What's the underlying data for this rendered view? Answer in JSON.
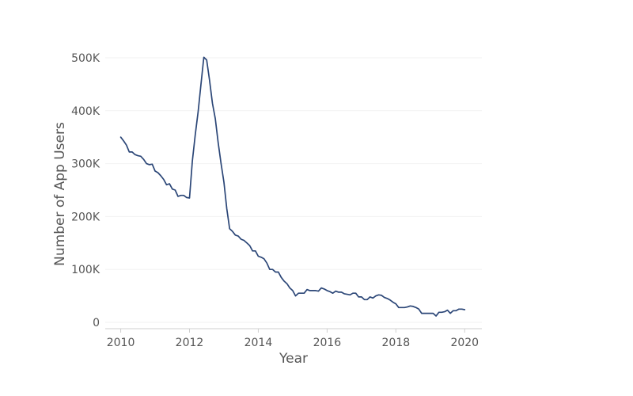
{
  "chart_data": {
    "type": "line",
    "title": "",
    "xlabel": "Year",
    "ylabel": "Number of App Users",
    "xlim": [
      2009.55,
      2020.5
    ],
    "ylim": [
      -12000,
      512000
    ],
    "grid": true,
    "x_ticks": [
      2010,
      2012,
      2014,
      2016,
      2018,
      2020
    ],
    "x_tick_labels": [
      "2010",
      "2012",
      "2014",
      "2016",
      "2018",
      "2020"
    ],
    "y_ticks": [
      0,
      100000,
      200000,
      300000,
      400000,
      500000
    ],
    "y_tick_labels": [
      "0",
      "100K",
      "200K",
      "300K",
      "400K",
      "500K"
    ],
    "series": [
      {
        "name": "App Users",
        "color": "#2b4677",
        "x": [
          2010.0,
          2010.083,
          2010.167,
          2010.25,
          2010.333,
          2010.417,
          2010.5,
          2010.583,
          2010.667,
          2010.75,
          2010.833,
          2010.917,
          2011.0,
          2011.083,
          2011.167,
          2011.25,
          2011.333,
          2011.417,
          2011.5,
          2011.583,
          2011.667,
          2011.75,
          2011.833,
          2011.917,
          2012.0,
          2012.083,
          2012.167,
          2012.25,
          2012.333,
          2012.417,
          2012.5,
          2012.583,
          2012.667,
          2012.75,
          2012.833,
          2012.917,
          2013.0,
          2013.083,
          2013.167,
          2013.25,
          2013.333,
          2013.417,
          2013.5,
          2013.583,
          2013.667,
          2013.75,
          2013.833,
          2013.917,
          2014.0,
          2014.083,
          2014.167,
          2014.25,
          2014.333,
          2014.417,
          2014.5,
          2014.583,
          2014.667,
          2014.75,
          2014.833,
          2014.917,
          2015.0,
          2015.083,
          2015.167,
          2015.25,
          2015.333,
          2015.417,
          2015.5,
          2015.583,
          2015.667,
          2015.75,
          2015.833,
          2015.917,
          2016.0,
          2016.083,
          2016.167,
          2016.25,
          2016.333,
          2016.417,
          2016.5,
          2016.583,
          2016.667,
          2016.75,
          2016.833,
          2016.917,
          2017.0,
          2017.083,
          2017.167,
          2017.25,
          2017.333,
          2017.417,
          2017.5,
          2017.583,
          2017.667,
          2017.75,
          2017.833,
          2017.917,
          2018.0,
          2018.083,
          2018.167,
          2018.25,
          2018.333,
          2018.417,
          2018.5,
          2018.583,
          2018.667,
          2018.75,
          2018.833,
          2018.917,
          2019.0,
          2019.083,
          2019.167,
          2019.25,
          2019.333,
          2019.417,
          2019.5,
          2019.583,
          2019.667,
          2019.75,
          2019.833,
          2019.917,
          2020.0
        ],
        "values": [
          350000,
          343000,
          335000,
          322000,
          322000,
          317000,
          315000,
          314000,
          308000,
          300000,
          298000,
          299000,
          286000,
          283000,
          277000,
          270000,
          260000,
          262000,
          252000,
          250000,
          238000,
          240000,
          240000,
          236000,
          235000,
          305000,
          355000,
          398000,
          450000,
          501000,
          496000,
          458000,
          414000,
          385000,
          340000,
          300000,
          265000,
          215000,
          177000,
          172000,
          165000,
          163000,
          157000,
          155000,
          150000,
          145000,
          135000,
          135000,
          125000,
          123000,
          120000,
          112000,
          100000,
          100000,
          95000,
          95000,
          85000,
          78000,
          73000,
          65000,
          60000,
          50000,
          55000,
          55000,
          55000,
          62000,
          60000,
          60000,
          60000,
          59000,
          65000,
          63000,
          60000,
          58000,
          55000,
          59000,
          57000,
          57000,
          54000,
          53000,
          52000,
          55000,
          55000,
          48000,
          48000,
          43000,
          43000,
          48000,
          46000,
          50000,
          52000,
          51000,
          47000,
          45000,
          42000,
          38000,
          35000,
          28000,
          28000,
          28000,
          29000,
          31000,
          30000,
          28000,
          25000,
          17000,
          17000,
          17000,
          17000,
          17000,
          12000,
          19000,
          19000,
          20000,
          23000,
          17000,
          22000,
          22000,
          25000,
          25000,
          24000
        ]
      }
    ]
  }
}
